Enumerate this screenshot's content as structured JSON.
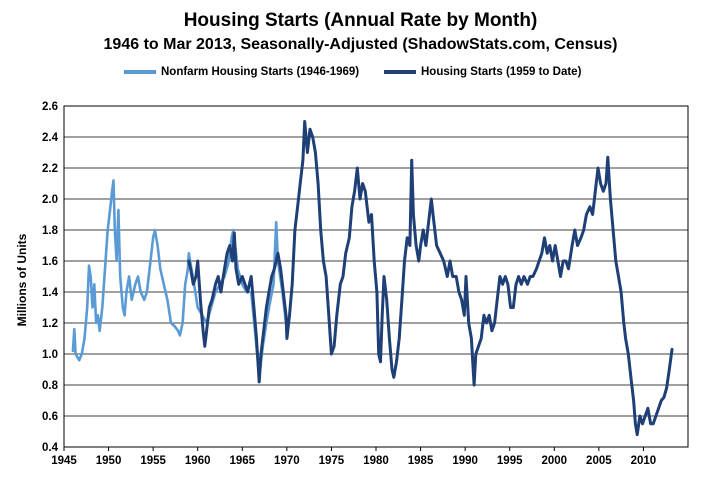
{
  "chart_data": {
    "type": "line",
    "title": "Housing Starts (Annual Rate by Month)",
    "subtitle": "1946 to Mar 2013, Seasonally-Adjusted (ShadowStats.com, Census)",
    "xlabel": "",
    "ylabel": "Millions of Units",
    "xlim": [
      1945,
      2015
    ],
    "ylim": [
      0.4,
      2.6
    ],
    "xticks": [
      1945,
      1950,
      1955,
      1960,
      1965,
      1970,
      1975,
      1980,
      1985,
      1990,
      1995,
      2000,
      2005,
      2010
    ],
    "xtick_labels": [
      "1945",
      "1950",
      "1955",
      "1960",
      "1965",
      "1970",
      "1975",
      "1980",
      "1985",
      "1990",
      "1995",
      "2000",
      "2005",
      "2010"
    ],
    "yticks": [
      0.4,
      0.6,
      0.8,
      1.0,
      1.2,
      1.4,
      1.6,
      1.8,
      2.0,
      2.2,
      2.4,
      2.6
    ],
    "ytick_labels": [
      "0.4",
      "0.6",
      "0.8",
      "1.0",
      "1.2",
      "1.4",
      "1.6",
      "1.8",
      "2.0",
      "2.2",
      "2.4",
      "2.6"
    ],
    "grid": "horizontal",
    "legend_position": "top",
    "series": [
      {
        "name": "Nonfarm Housing Starts (1946-1969)",
        "color": "#5b9bd5",
        "points": [
          [
            1946.0,
            1.02
          ],
          [
            1946.15,
            1.16
          ],
          [
            1946.3,
            1.0
          ],
          [
            1946.5,
            0.98
          ],
          [
            1946.7,
            0.96
          ],
          [
            1947.0,
            1.0
          ],
          [
            1947.3,
            1.1
          ],
          [
            1947.6,
            1.3
          ],
          [
            1947.8,
            1.57
          ],
          [
            1948.0,
            1.5
          ],
          [
            1948.2,
            1.3
          ],
          [
            1948.4,
            1.45
          ],
          [
            1948.6,
            1.2
          ],
          [
            1948.8,
            1.25
          ],
          [
            1949.0,
            1.15
          ],
          [
            1949.3,
            1.3
          ],
          [
            1949.6,
            1.55
          ],
          [
            1949.9,
            1.8
          ],
          [
            1950.2,
            1.95
          ],
          [
            1950.4,
            2.05
          ],
          [
            1950.55,
            2.12
          ],
          [
            1950.7,
            1.8
          ],
          [
            1950.9,
            1.6
          ],
          [
            1951.1,
            1.93
          ],
          [
            1951.3,
            1.5
          ],
          [
            1951.6,
            1.3
          ],
          [
            1951.8,
            1.25
          ],
          [
            1952.0,
            1.4
          ],
          [
            1952.3,
            1.5
          ],
          [
            1952.6,
            1.35
          ],
          [
            1953.0,
            1.45
          ],
          [
            1953.3,
            1.5
          ],
          [
            1953.6,
            1.4
          ],
          [
            1954.0,
            1.35
          ],
          [
            1954.3,
            1.4
          ],
          [
            1954.6,
            1.55
          ],
          [
            1955.0,
            1.75
          ],
          [
            1955.2,
            1.8
          ],
          [
            1955.5,
            1.7
          ],
          [
            1955.8,
            1.55
          ],
          [
            1956.2,
            1.45
          ],
          [
            1956.6,
            1.35
          ],
          [
            1957.0,
            1.2
          ],
          [
            1957.4,
            1.18
          ],
          [
            1957.8,
            1.15
          ],
          [
            1958.0,
            1.12
          ],
          [
            1958.3,
            1.2
          ],
          [
            1958.6,
            1.45
          ],
          [
            1958.9,
            1.55
          ],
          [
            1959.0,
            1.65
          ],
          [
            1959.3,
            1.55
          ],
          [
            1959.6,
            1.45
          ],
          [
            1960.0,
            1.3
          ],
          [
            1960.5,
            1.25
          ],
          [
            1961.0,
            1.2
          ],
          [
            1961.5,
            1.3
          ],
          [
            1962.0,
            1.4
          ],
          [
            1962.5,
            1.45
          ],
          [
            1963.0,
            1.5
          ],
          [
            1963.5,
            1.6
          ],
          [
            1963.8,
            1.75
          ],
          [
            1964.0,
            1.8
          ],
          [
            1964.5,
            1.55
          ],
          [
            1965.0,
            1.45
          ],
          [
            1965.5,
            1.4
          ],
          [
            1966.0,
            1.4
          ],
          [
            1966.5,
            1.1
          ],
          [
            1966.9,
            0.85
          ],
          [
            1967.3,
            1.05
          ],
          [
            1967.7,
            1.2
          ],
          [
            1968.0,
            1.3
          ],
          [
            1968.5,
            1.45
          ],
          [
            1968.8,
            1.85
          ],
          [
            1969.0,
            1.6
          ],
          [
            1969.5,
            1.4
          ],
          [
            1969.9,
            1.2
          ]
        ]
      },
      {
        "name": "Housing Starts (1959 to Date)",
        "color": "#1f3f77",
        "points": [
          [
            1959.0,
            1.6
          ],
          [
            1959.2,
            1.55
          ],
          [
            1959.5,
            1.45
          ],
          [
            1959.8,
            1.5
          ],
          [
            1960.0,
            1.6
          ],
          [
            1960.3,
            1.35
          ],
          [
            1960.6,
            1.15
          ],
          [
            1960.8,
            1.05
          ],
          [
            1961.0,
            1.15
          ],
          [
            1961.3,
            1.3
          ],
          [
            1961.6,
            1.35
          ],
          [
            1962.0,
            1.45
          ],
          [
            1962.3,
            1.5
          ],
          [
            1962.6,
            1.4
          ],
          [
            1963.0,
            1.55
          ],
          [
            1963.3,
            1.65
          ],
          [
            1963.6,
            1.7
          ],
          [
            1963.9,
            1.6
          ],
          [
            1964.1,
            1.78
          ],
          [
            1964.3,
            1.55
          ],
          [
            1964.6,
            1.45
          ],
          [
            1965.0,
            1.5
          ],
          [
            1965.3,
            1.45
          ],
          [
            1965.6,
            1.4
          ],
          [
            1966.0,
            1.5
          ],
          [
            1966.3,
            1.3
          ],
          [
            1966.6,
            1.1
          ],
          [
            1966.9,
            0.82
          ],
          [
            1967.1,
            1.0
          ],
          [
            1967.4,
            1.15
          ],
          [
            1967.7,
            1.3
          ],
          [
            1968.0,
            1.4
          ],
          [
            1968.3,
            1.5
          ],
          [
            1968.6,
            1.55
          ],
          [
            1969.0,
            1.65
          ],
          [
            1969.3,
            1.55
          ],
          [
            1969.6,
            1.4
          ],
          [
            1969.9,
            1.25
          ],
          [
            1970.0,
            1.1
          ],
          [
            1970.3,
            1.25
          ],
          [
            1970.6,
            1.45
          ],
          [
            1970.9,
            1.8
          ],
          [
            1971.2,
            1.95
          ],
          [
            1971.5,
            2.1
          ],
          [
            1971.8,
            2.25
          ],
          [
            1972.0,
            2.5
          ],
          [
            1972.3,
            2.3
          ],
          [
            1972.6,
            2.45
          ],
          [
            1972.9,
            2.4
          ],
          [
            1973.2,
            2.3
          ],
          [
            1973.5,
            2.1
          ],
          [
            1973.8,
            1.8
          ],
          [
            1974.1,
            1.6
          ],
          [
            1974.4,
            1.5
          ],
          [
            1974.7,
            1.25
          ],
          [
            1975.0,
            1.0
          ],
          [
            1975.3,
            1.05
          ],
          [
            1975.6,
            1.25
          ],
          [
            1976.0,
            1.45
          ],
          [
            1976.3,
            1.5
          ],
          [
            1976.6,
            1.65
          ],
          [
            1977.0,
            1.75
          ],
          [
            1977.3,
            1.95
          ],
          [
            1977.6,
            2.05
          ],
          [
            1977.9,
            2.2
          ],
          [
            1978.2,
            2.0
          ],
          [
            1978.5,
            2.1
          ],
          [
            1978.8,
            2.05
          ],
          [
            1979.2,
            1.85
          ],
          [
            1979.5,
            1.9
          ],
          [
            1979.8,
            1.6
          ],
          [
            1980.1,
            1.4
          ],
          [
            1980.3,
            1.0
          ],
          [
            1980.5,
            0.95
          ],
          [
            1980.7,
            1.25
          ],
          [
            1980.9,
            1.5
          ],
          [
            1981.2,
            1.35
          ],
          [
            1981.5,
            1.1
          ],
          [
            1981.8,
            0.9
          ],
          [
            1982.0,
            0.85
          ],
          [
            1982.3,
            0.95
          ],
          [
            1982.6,
            1.1
          ],
          [
            1982.9,
            1.35
          ],
          [
            1983.2,
            1.6
          ],
          [
            1983.5,
            1.75
          ],
          [
            1983.8,
            1.7
          ],
          [
            1984.0,
            2.25
          ],
          [
            1984.2,
            1.9
          ],
          [
            1984.5,
            1.7
          ],
          [
            1984.8,
            1.6
          ],
          [
            1985.0,
            1.7
          ],
          [
            1985.3,
            1.8
          ],
          [
            1985.6,
            1.7
          ],
          [
            1985.9,
            1.85
          ],
          [
            1986.2,
            2.0
          ],
          [
            1986.5,
            1.85
          ],
          [
            1986.8,
            1.7
          ],
          [
            1987.2,
            1.65
          ],
          [
            1987.6,
            1.6
          ],
          [
            1988.0,
            1.5
          ],
          [
            1988.3,
            1.6
          ],
          [
            1988.6,
            1.5
          ],
          [
            1989.0,
            1.5
          ],
          [
            1989.3,
            1.4
          ],
          [
            1989.6,
            1.35
          ],
          [
            1989.9,
            1.25
          ],
          [
            1990.1,
            1.5
          ],
          [
            1990.4,
            1.2
          ],
          [
            1990.7,
            1.1
          ],
          [
            1991.0,
            0.8
          ],
          [
            1991.2,
            1.0
          ],
          [
            1991.5,
            1.05
          ],
          [
            1991.8,
            1.1
          ],
          [
            1992.1,
            1.25
          ],
          [
            1992.4,
            1.2
          ],
          [
            1992.7,
            1.25
          ],
          [
            1993.0,
            1.15
          ],
          [
            1993.3,
            1.2
          ],
          [
            1993.6,
            1.35
          ],
          [
            1993.9,
            1.5
          ],
          [
            1994.2,
            1.45
          ],
          [
            1994.5,
            1.5
          ],
          [
            1994.8,
            1.45
          ],
          [
            1995.1,
            1.3
          ],
          [
            1995.4,
            1.3
          ],
          [
            1995.7,
            1.45
          ],
          [
            1996.0,
            1.5
          ],
          [
            1996.3,
            1.45
          ],
          [
            1996.6,
            1.5
          ],
          [
            1997.0,
            1.45
          ],
          [
            1997.3,
            1.5
          ],
          [
            1997.6,
            1.5
          ],
          [
            1998.0,
            1.55
          ],
          [
            1998.3,
            1.6
          ],
          [
            1998.6,
            1.65
          ],
          [
            1998.9,
            1.75
          ],
          [
            1999.2,
            1.65
          ],
          [
            1999.5,
            1.7
          ],
          [
            1999.8,
            1.6
          ],
          [
            2000.1,
            1.7
          ],
          [
            2000.4,
            1.6
          ],
          [
            2000.7,
            1.5
          ],
          [
            2001.0,
            1.6
          ],
          [
            2001.3,
            1.6
          ],
          [
            2001.6,
            1.55
          ],
          [
            2002.0,
            1.7
          ],
          [
            2002.3,
            1.8
          ],
          [
            2002.6,
            1.7
          ],
          [
            2003.0,
            1.75
          ],
          [
            2003.3,
            1.8
          ],
          [
            2003.6,
            1.9
          ],
          [
            2004.0,
            1.95
          ],
          [
            2004.3,
            1.9
          ],
          [
            2004.6,
            2.05
          ],
          [
            2004.9,
            2.2
          ],
          [
            2005.2,
            2.1
          ],
          [
            2005.5,
            2.05
          ],
          [
            2005.8,
            2.1
          ],
          [
            2006.0,
            2.27
          ],
          [
            2006.3,
            2.0
          ],
          [
            2006.6,
            1.8
          ],
          [
            2006.9,
            1.6
          ],
          [
            2007.2,
            1.5
          ],
          [
            2007.5,
            1.4
          ],
          [
            2007.8,
            1.2
          ],
          [
            2008.0,
            1.1
          ],
          [
            2008.3,
            1.0
          ],
          [
            2008.6,
            0.85
          ],
          [
            2008.9,
            0.7
          ],
          [
            2009.1,
            0.55
          ],
          [
            2009.3,
            0.48
          ],
          [
            2009.6,
            0.6
          ],
          [
            2009.9,
            0.55
          ],
          [
            2010.2,
            0.6
          ],
          [
            2010.5,
            0.65
          ],
          [
            2010.8,
            0.55
          ],
          [
            2011.1,
            0.55
          ],
          [
            2011.4,
            0.6
          ],
          [
            2011.7,
            0.65
          ],
          [
            2012.0,
            0.7
          ],
          [
            2012.3,
            0.72
          ],
          [
            2012.6,
            0.78
          ],
          [
            2012.9,
            0.9
          ],
          [
            2013.2,
            1.03
          ]
        ]
      }
    ]
  }
}
